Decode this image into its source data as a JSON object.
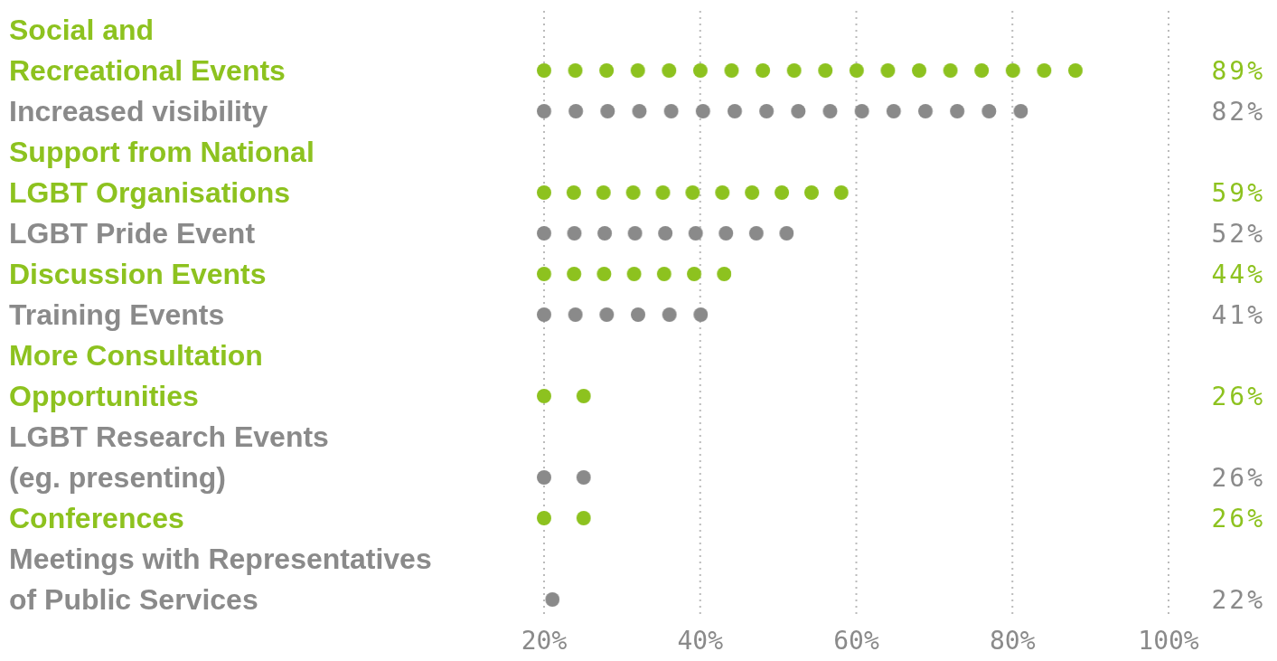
{
  "chart_data": {
    "type": "bar",
    "orientation": "horizontal",
    "categories": [
      "Social and\nRecreational Events",
      "Increased visibility",
      "Support from National\nLGBT Organisations",
      "LGBT Pride Event",
      "Discussion Events",
      "Training Events",
      "More Consultation\nOpportunities",
      "LGBT Research Events\n(eg. presenting)",
      "Conferences",
      "Meetings with Representatives\nof Public Services"
    ],
    "values": [
      89,
      82,
      59,
      52,
      44,
      41,
      26,
      26,
      26,
      22
    ],
    "colors": [
      "#8dc21f",
      "#8a8a8a",
      "#8dc21f",
      "#8a8a8a",
      "#8dc21f",
      "#8a8a8a",
      "#8dc21f",
      "#8a8a8a",
      "#8dc21f",
      "#8a8a8a"
    ],
    "value_labels": [
      "89%",
      "82%",
      "59%",
      "52%",
      "44%",
      "41%",
      "26%",
      "26%",
      "26%",
      "22%"
    ],
    "xlim": [
      20,
      100
    ],
    "xticks": [
      {
        "value": 20,
        "label": "20%"
      },
      {
        "value": 40,
        "label": "40%"
      },
      {
        "value": 60,
        "label": "60%"
      },
      {
        "value": 80,
        "label": "80%"
      },
      {
        "value": 100,
        "label": "100%"
      }
    ],
    "grid": "x"
  }
}
